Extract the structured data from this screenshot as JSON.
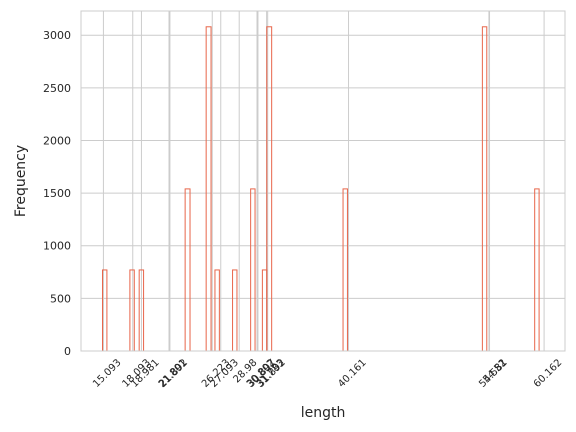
{
  "chart_data": {
    "type": "bar",
    "title": "",
    "xlabel": "length",
    "ylabel": "Frequency",
    "ylim": [
      0,
      3230
    ],
    "xlim": [
      12.8,
      62.3
    ],
    "y_ticks": [
      0,
      500,
      1000,
      1500,
      2000,
      2500,
      3000
    ],
    "y_tick_labels": [
      "0",
      "500",
      "1000",
      "1500",
      "2000",
      "2500",
      "3000"
    ],
    "x_ticks": [
      {
        "value": 15.093,
        "label": "15.093"
      },
      {
        "value": 18.093,
        "label": "18.093"
      },
      {
        "value": 18.981,
        "label": "18.981"
      },
      {
        "value": 21.801,
        "label": "21.801"
      },
      {
        "value": 21.892,
        "label": "21.892"
      },
      {
        "value": 26.223,
        "label": "26.223"
      },
      {
        "value": 27.093,
        "label": "27.093"
      },
      {
        "value": 28.98,
        "label": "28.98"
      },
      {
        "value": 30.802,
        "label": "30.802"
      },
      {
        "value": 30.897,
        "label": "30.897"
      },
      {
        "value": 31.783,
        "label": "31.783"
      },
      {
        "value": 31.892,
        "label": "31.892"
      },
      {
        "value": 40.161,
        "label": "40.161"
      },
      {
        "value": 54.52,
        "label": "54.52"
      },
      {
        "value": 54.581,
        "label": "54.581"
      },
      {
        "value": 60.162,
        "label": "60.162"
      }
    ],
    "bars": [
      {
        "x0": 15.0,
        "x1": 15.45,
        "count": 770
      },
      {
        "x0": 17.8,
        "x1": 18.25,
        "count": 770
      },
      {
        "x0": 18.75,
        "x1": 19.2,
        "count": 770
      },
      {
        "x0": 23.45,
        "x1": 23.95,
        "count": 1540
      },
      {
        "x0": 25.6,
        "x1": 26.1,
        "count": 3080
      },
      {
        "x0": 26.5,
        "x1": 26.95,
        "count": 770
      },
      {
        "x0": 28.3,
        "x1": 28.75,
        "count": 770
      },
      {
        "x0": 30.15,
        "x1": 30.6,
        "count": 1540
      },
      {
        "x0": 31.35,
        "x1": 31.8,
        "count": 770
      },
      {
        "x0": 31.8,
        "x1": 32.3,
        "count": 3080
      },
      {
        "x0": 39.6,
        "x1": 40.05,
        "count": 1540
      },
      {
        "x0": 53.85,
        "x1": 54.3,
        "count": 3080
      },
      {
        "x0": 59.2,
        "x1": 59.65,
        "count": 1540
      }
    ],
    "grid": true,
    "colors": {
      "bar_edge": "#e8654a",
      "grid": "#cccccc",
      "spine": "#cccccc",
      "text": "#262626"
    }
  }
}
